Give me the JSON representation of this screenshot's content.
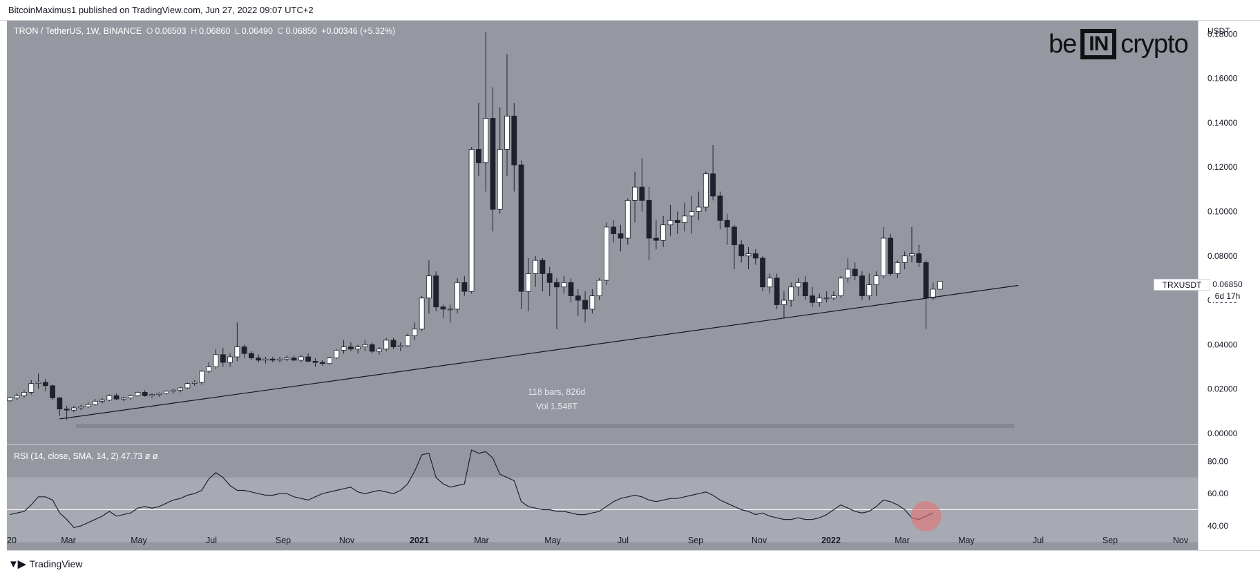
{
  "header": {
    "publisher": "BitcoinMaximus1 published on TradingView.com, Jun 27, 2022 09:07 UTC+2"
  },
  "legend": {
    "symbol": "TRON / TetherUS, 1W, BINANCE",
    "open_label": "O",
    "open": "0.06503",
    "high_label": "H",
    "high": "0.06860",
    "low_label": "L",
    "low": "0.06490",
    "close_label": "C",
    "close": "0.06850",
    "change": "+0.00346 (+5.32%)"
  },
  "logo": {
    "left": "be",
    "box": "IN",
    "right": "crypto"
  },
  "price_axis": {
    "unit": "USDT",
    "ticks": [
      "0.18000",
      "0.16000",
      "0.14000",
      "0.12000",
      "0.10000",
      "0.08000",
      "0.06000",
      "0.04000",
      "0.02000",
      "0.00000"
    ]
  },
  "price_badge": {
    "symbol": "TRXUSDT",
    "price": "0.06850",
    "countdown": "6d 17h"
  },
  "range_info": {
    "bars": "118 bars, 826d",
    "volume": "Vol 1.548T"
  },
  "rsi": {
    "legend": "RSI (14, close, SMA, 14, 2)",
    "value": "47.73",
    "extra1": "ø",
    "extra2": "ø",
    "ticks": [
      "80.00",
      "60.00",
      "40.00"
    ]
  },
  "time_axis": {
    "labels": [
      "20",
      "Mar",
      "May",
      "Jul",
      "Sep",
      "Nov",
      "2021",
      "Mar",
      "May",
      "Jul",
      "Sep",
      "Nov",
      "2022",
      "Mar",
      "May",
      "Jul",
      "Sep",
      "Nov"
    ]
  },
  "footer": {
    "brand": "TradingView"
  },
  "colors": {
    "pane_bg": "#9598a1",
    "up_candle": "#ffffff",
    "down_candle": "#1e222d",
    "rsi_band": "#a7aab2",
    "rsi_highlight": "#e57373"
  },
  "chart_data": {
    "type": "candlestick",
    "interval": "1W",
    "price_range": [
      -0.005,
      0.186
    ],
    "rsi_range": [
      25,
      90
    ],
    "trendline": {
      "from": {
        "week": 7,
        "price": 0.0065
      },
      "to": {
        "week": 142,
        "price": 0.0667
      }
    },
    "candles": [
      {
        "o": 0.0147,
        "h": 0.0165,
        "l": 0.014,
        "c": 0.016
      },
      {
        "o": 0.016,
        "h": 0.018,
        "l": 0.015,
        "c": 0.017
      },
      {
        "o": 0.017,
        "h": 0.0195,
        "l": 0.016,
        "c": 0.0185
      },
      {
        "o": 0.0185,
        "h": 0.024,
        "l": 0.0175,
        "c": 0.0225
      },
      {
        "o": 0.0225,
        "h": 0.027,
        "l": 0.02,
        "c": 0.023
      },
      {
        "o": 0.023,
        "h": 0.0245,
        "l": 0.019,
        "c": 0.0215
      },
      {
        "o": 0.0215,
        "h": 0.022,
        "l": 0.015,
        "c": 0.016
      },
      {
        "o": 0.016,
        "h": 0.0165,
        "l": 0.008,
        "c": 0.011
      },
      {
        "o": 0.011,
        "h": 0.0125,
        "l": 0.006,
        "c": 0.0105
      },
      {
        "o": 0.0105,
        "h": 0.0125,
        "l": 0.0095,
        "c": 0.0115
      },
      {
        "o": 0.0115,
        "h": 0.013,
        "l": 0.0105,
        "c": 0.012
      },
      {
        "o": 0.012,
        "h": 0.014,
        "l": 0.0115,
        "c": 0.013
      },
      {
        "o": 0.013,
        "h": 0.0155,
        "l": 0.0125,
        "c": 0.0145
      },
      {
        "o": 0.0145,
        "h": 0.016,
        "l": 0.0135,
        "c": 0.015
      },
      {
        "o": 0.015,
        "h": 0.0175,
        "l": 0.0145,
        "c": 0.017
      },
      {
        "o": 0.017,
        "h": 0.018,
        "l": 0.015,
        "c": 0.0155
      },
      {
        "o": 0.0155,
        "h": 0.0165,
        "l": 0.0145,
        "c": 0.016
      },
      {
        "o": 0.016,
        "h": 0.0175,
        "l": 0.015,
        "c": 0.017
      },
      {
        "o": 0.017,
        "h": 0.019,
        "l": 0.0165,
        "c": 0.0185
      },
      {
        "o": 0.0185,
        "h": 0.0195,
        "l": 0.0165,
        "c": 0.017
      },
      {
        "o": 0.017,
        "h": 0.018,
        "l": 0.016,
        "c": 0.0175
      },
      {
        "o": 0.0175,
        "h": 0.0185,
        "l": 0.0165,
        "c": 0.018
      },
      {
        "o": 0.018,
        "h": 0.0195,
        "l": 0.0175,
        "c": 0.019
      },
      {
        "o": 0.019,
        "h": 0.02,
        "l": 0.018,
        "c": 0.0195
      },
      {
        "o": 0.0195,
        "h": 0.021,
        "l": 0.0185,
        "c": 0.0205
      },
      {
        "o": 0.0205,
        "h": 0.023,
        "l": 0.02,
        "c": 0.0225
      },
      {
        "o": 0.0225,
        "h": 0.024,
        "l": 0.0215,
        "c": 0.023
      },
      {
        "o": 0.023,
        "h": 0.0285,
        "l": 0.022,
        "c": 0.028
      },
      {
        "o": 0.028,
        "h": 0.032,
        "l": 0.027,
        "c": 0.03
      },
      {
        "o": 0.03,
        "h": 0.038,
        "l": 0.029,
        "c": 0.0355
      },
      {
        "o": 0.0355,
        "h": 0.0385,
        "l": 0.03,
        "c": 0.032
      },
      {
        "o": 0.032,
        "h": 0.036,
        "l": 0.03,
        "c": 0.0345
      },
      {
        "o": 0.0345,
        "h": 0.05,
        "l": 0.0325,
        "c": 0.039
      },
      {
        "o": 0.039,
        "h": 0.04,
        "l": 0.034,
        "c": 0.036
      },
      {
        "o": 0.036,
        "h": 0.037,
        "l": 0.033,
        "c": 0.034
      },
      {
        "o": 0.034,
        "h": 0.0355,
        "l": 0.032,
        "c": 0.033
      },
      {
        "o": 0.033,
        "h": 0.0345,
        "l": 0.0315,
        "c": 0.0335
      },
      {
        "o": 0.0335,
        "h": 0.0345,
        "l": 0.032,
        "c": 0.033
      },
      {
        "o": 0.033,
        "h": 0.0345,
        "l": 0.032,
        "c": 0.0335
      },
      {
        "o": 0.0335,
        "h": 0.035,
        "l": 0.0325,
        "c": 0.034
      },
      {
        "o": 0.034,
        "h": 0.035,
        "l": 0.0325,
        "c": 0.033
      },
      {
        "o": 0.033,
        "h": 0.0355,
        "l": 0.032,
        "c": 0.0345
      },
      {
        "o": 0.0345,
        "h": 0.036,
        "l": 0.032,
        "c": 0.0325
      },
      {
        "o": 0.0325,
        "h": 0.034,
        "l": 0.03,
        "c": 0.032
      },
      {
        "o": 0.032,
        "h": 0.033,
        "l": 0.0305,
        "c": 0.0315
      },
      {
        "o": 0.0315,
        "h": 0.0345,
        "l": 0.031,
        "c": 0.034
      },
      {
        "o": 0.034,
        "h": 0.038,
        "l": 0.0335,
        "c": 0.0375
      },
      {
        "o": 0.0375,
        "h": 0.042,
        "l": 0.036,
        "c": 0.039
      },
      {
        "o": 0.039,
        "h": 0.041,
        "l": 0.037,
        "c": 0.038
      },
      {
        "o": 0.038,
        "h": 0.04,
        "l": 0.036,
        "c": 0.039
      },
      {
        "o": 0.039,
        "h": 0.042,
        "l": 0.037,
        "c": 0.04
      },
      {
        "o": 0.04,
        "h": 0.041,
        "l": 0.036,
        "c": 0.037
      },
      {
        "o": 0.037,
        "h": 0.039,
        "l": 0.0355,
        "c": 0.038
      },
      {
        "o": 0.038,
        "h": 0.043,
        "l": 0.037,
        "c": 0.042
      },
      {
        "o": 0.042,
        "h": 0.043,
        "l": 0.038,
        "c": 0.039
      },
      {
        "o": 0.039,
        "h": 0.041,
        "l": 0.037,
        "c": 0.0395
      },
      {
        "o": 0.0395,
        "h": 0.045,
        "l": 0.039,
        "c": 0.044
      },
      {
        "o": 0.044,
        "h": 0.05,
        "l": 0.042,
        "c": 0.047
      },
      {
        "o": 0.047,
        "h": 0.062,
        "l": 0.046,
        "c": 0.061
      },
      {
        "o": 0.061,
        "h": 0.078,
        "l": 0.054,
        "c": 0.071
      },
      {
        "o": 0.071,
        "h": 0.073,
        "l": 0.055,
        "c": 0.057
      },
      {
        "o": 0.057,
        "h": 0.058,
        "l": 0.052,
        "c": 0.056
      },
      {
        "o": 0.056,
        "h": 0.058,
        "l": 0.05,
        "c": 0.056
      },
      {
        "o": 0.056,
        "h": 0.07,
        "l": 0.054,
        "c": 0.068
      },
      {
        "o": 0.068,
        "h": 0.071,
        "l": 0.062,
        "c": 0.064
      },
      {
        "o": 0.064,
        "h": 0.129,
        "l": 0.063,
        "c": 0.128
      },
      {
        "o": 0.128,
        "h": 0.149,
        "l": 0.116,
        "c": 0.122
      },
      {
        "o": 0.122,
        "h": 0.181,
        "l": 0.109,
        "c": 0.142
      },
      {
        "o": 0.142,
        "h": 0.156,
        "l": 0.091,
        "c": 0.101
      },
      {
        "o": 0.101,
        "h": 0.147,
        "l": 0.099,
        "c": 0.128
      },
      {
        "o": 0.128,
        "h": 0.171,
        "l": 0.116,
        "c": 0.143
      },
      {
        "o": 0.143,
        "h": 0.149,
        "l": 0.109,
        "c": 0.121
      },
      {
        "o": 0.121,
        "h": 0.123,
        "l": 0.056,
        "c": 0.064
      },
      {
        "o": 0.064,
        "h": 0.079,
        "l": 0.055,
        "c": 0.072
      },
      {
        "o": 0.072,
        "h": 0.08,
        "l": 0.066,
        "c": 0.078
      },
      {
        "o": 0.078,
        "h": 0.079,
        "l": 0.064,
        "c": 0.072
      },
      {
        "o": 0.072,
        "h": 0.075,
        "l": 0.062,
        "c": 0.068
      },
      {
        "o": 0.068,
        "h": 0.07,
        "l": 0.047,
        "c": 0.066
      },
      {
        "o": 0.066,
        "h": 0.071,
        "l": 0.063,
        "c": 0.068
      },
      {
        "o": 0.068,
        "h": 0.07,
        "l": 0.059,
        "c": 0.062
      },
      {
        "o": 0.062,
        "h": 0.065,
        "l": 0.053,
        "c": 0.06
      },
      {
        "o": 0.06,
        "h": 0.064,
        "l": 0.05,
        "c": 0.056
      },
      {
        "o": 0.056,
        "h": 0.065,
        "l": 0.054,
        "c": 0.062
      },
      {
        "o": 0.062,
        "h": 0.07,
        "l": 0.06,
        "c": 0.069
      },
      {
        "o": 0.069,
        "h": 0.095,
        "l": 0.067,
        "c": 0.093
      },
      {
        "o": 0.093,
        "h": 0.096,
        "l": 0.086,
        "c": 0.09
      },
      {
        "o": 0.09,
        "h": 0.094,
        "l": 0.082,
        "c": 0.088
      },
      {
        "o": 0.088,
        "h": 0.106,
        "l": 0.085,
        "c": 0.105
      },
      {
        "o": 0.105,
        "h": 0.118,
        "l": 0.095,
        "c": 0.111
      },
      {
        "o": 0.111,
        "h": 0.124,
        "l": 0.1,
        "c": 0.105
      },
      {
        "o": 0.105,
        "h": 0.111,
        "l": 0.078,
        "c": 0.088
      },
      {
        "o": 0.088,
        "h": 0.096,
        "l": 0.083,
        "c": 0.087
      },
      {
        "o": 0.087,
        "h": 0.098,
        "l": 0.084,
        "c": 0.094
      },
      {
        "o": 0.094,
        "h": 0.103,
        "l": 0.089,
        "c": 0.096
      },
      {
        "o": 0.096,
        "h": 0.1,
        "l": 0.09,
        "c": 0.095
      },
      {
        "o": 0.095,
        "h": 0.104,
        "l": 0.091,
        "c": 0.098
      },
      {
        "o": 0.098,
        "h": 0.107,
        "l": 0.09,
        "c": 0.1
      },
      {
        "o": 0.1,
        "h": 0.109,
        "l": 0.096,
        "c": 0.102
      },
      {
        "o": 0.102,
        "h": 0.118,
        "l": 0.1,
        "c": 0.117
      },
      {
        "o": 0.117,
        "h": 0.13,
        "l": 0.105,
        "c": 0.107
      },
      {
        "o": 0.107,
        "h": 0.109,
        "l": 0.092,
        "c": 0.096
      },
      {
        "o": 0.096,
        "h": 0.099,
        "l": 0.085,
        "c": 0.093
      },
      {
        "o": 0.093,
        "h": 0.094,
        "l": 0.074,
        "c": 0.085
      },
      {
        "o": 0.085,
        "h": 0.087,
        "l": 0.077,
        "c": 0.08
      },
      {
        "o": 0.08,
        "h": 0.084,
        "l": 0.074,
        "c": 0.081
      },
      {
        "o": 0.081,
        "h": 0.083,
        "l": 0.076,
        "c": 0.079
      },
      {
        "o": 0.079,
        "h": 0.08,
        "l": 0.064,
        "c": 0.066
      },
      {
        "o": 0.066,
        "h": 0.072,
        "l": 0.063,
        "c": 0.07
      },
      {
        "o": 0.07,
        "h": 0.072,
        "l": 0.056,
        "c": 0.058
      },
      {
        "o": 0.058,
        "h": 0.064,
        "l": 0.052,
        "c": 0.06
      },
      {
        "o": 0.06,
        "h": 0.068,
        "l": 0.057,
        "c": 0.066
      },
      {
        "o": 0.066,
        "h": 0.07,
        "l": 0.062,
        "c": 0.068
      },
      {
        "o": 0.068,
        "h": 0.071,
        "l": 0.06,
        "c": 0.062
      },
      {
        "o": 0.062,
        "h": 0.066,
        "l": 0.057,
        "c": 0.059
      },
      {
        "o": 0.059,
        "h": 0.063,
        "l": 0.057,
        "c": 0.061
      },
      {
        "o": 0.061,
        "h": 0.064,
        "l": 0.059,
        "c": 0.061
      },
      {
        "o": 0.061,
        "h": 0.064,
        "l": 0.06,
        "c": 0.062
      },
      {
        "o": 0.062,
        "h": 0.071,
        "l": 0.061,
        "c": 0.07
      },
      {
        "o": 0.07,
        "h": 0.079,
        "l": 0.068,
        "c": 0.074
      },
      {
        "o": 0.074,
        "h": 0.077,
        "l": 0.069,
        "c": 0.071
      },
      {
        "o": 0.071,
        "h": 0.073,
        "l": 0.06,
        "c": 0.062
      },
      {
        "o": 0.062,
        "h": 0.072,
        "l": 0.06,
        "c": 0.067
      },
      {
        "o": 0.067,
        "h": 0.073,
        "l": 0.062,
        "c": 0.071
      },
      {
        "o": 0.071,
        "h": 0.093,
        "l": 0.07,
        "c": 0.088
      },
      {
        "o": 0.088,
        "h": 0.09,
        "l": 0.071,
        "c": 0.072
      },
      {
        "o": 0.072,
        "h": 0.078,
        "l": 0.07,
        "c": 0.077
      },
      {
        "o": 0.077,
        "h": 0.082,
        "l": 0.074,
        "c": 0.08
      },
      {
        "o": 0.08,
        "h": 0.093,
        "l": 0.077,
        "c": 0.081
      },
      {
        "o": 0.081,
        "h": 0.085,
        "l": 0.075,
        "c": 0.077
      },
      {
        "o": 0.077,
        "h": 0.078,
        "l": 0.047,
        "c": 0.061
      },
      {
        "o": 0.061,
        "h": 0.068,
        "l": 0.06,
        "c": 0.065
      },
      {
        "o": 0.065,
        "h": 0.0686,
        "l": 0.0649,
        "c": 0.0685
      }
    ],
    "rsi_values": [
      47,
      48,
      49,
      53,
      58,
      58,
      56,
      48,
      44,
      39,
      40,
      42,
      44,
      46,
      49,
      46,
      47,
      48,
      51,
      52,
      51,
      52,
      54,
      56,
      57,
      59,
      60,
      62,
      69,
      73,
      70,
      65,
      62,
      62,
      61,
      60,
      59,
      59,
      60,
      60,
      58,
      57,
      56,
      58,
      60,
      61,
      62,
      63,
      64,
      61,
      60,
      61,
      62,
      61,
      60,
      62,
      66,
      74,
      84,
      85,
      70,
      66,
      64,
      65,
      66,
      87,
      85,
      86,
      82,
      72,
      70,
      68,
      55,
      52,
      51,
      50,
      50,
      49,
      49,
      48,
      47,
      47,
      48,
      49,
      52,
      55,
      57,
      58,
      59,
      58,
      56,
      55,
      56,
      57,
      57,
      58,
      59,
      60,
      61,
      59,
      56,
      54,
      52,
      50,
      49,
      47,
      48,
      46,
      45,
      44,
      44,
      45,
      44,
      44,
      45,
      47,
      50,
      53,
      51,
      49,
      48,
      49,
      52,
      56,
      55,
      53,
      50,
      45,
      44,
      46,
      48
    ]
  }
}
